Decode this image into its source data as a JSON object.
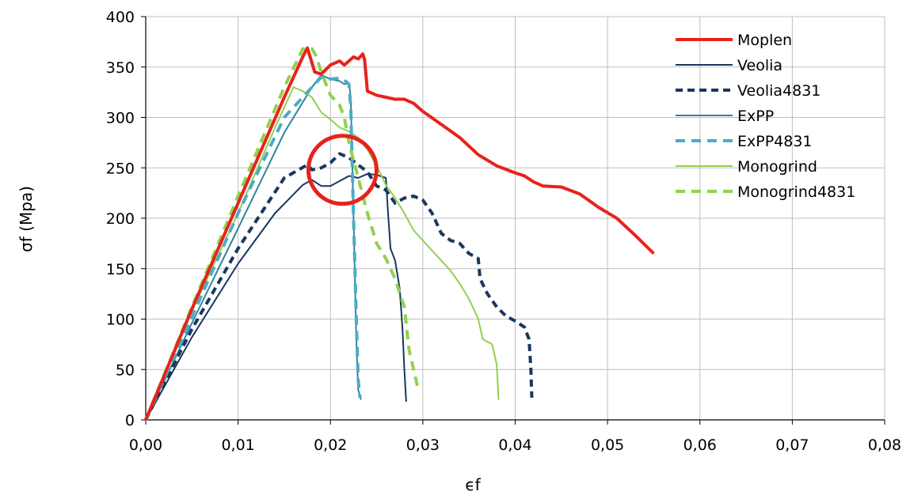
{
  "chart_data": {
    "type": "line",
    "xlabel": "ϵf",
    "ylabel": "σf (Mpa)",
    "xlim": [
      0,
      0.08
    ],
    "ylim": [
      0,
      400
    ],
    "x_ticks": [
      "0,00",
      "0,01",
      "0,02",
      "0,03",
      "0,04",
      "0,05",
      "0,06",
      "0,07",
      "0,08"
    ],
    "y_ticks": [
      "0",
      "50",
      "100",
      "150",
      "200",
      "250",
      "300",
      "350",
      "400"
    ],
    "grid": true,
    "legend_position": "top-right",
    "annotation": {
      "type": "circle",
      "center": [
        0.0213,
        248
      ],
      "color": "#e8221b"
    },
    "series": [
      {
        "name": "Moplen",
        "color": "#e8221b",
        "dash": "solid",
        "width": 4,
        "points": [
          [
            0,
            0
          ],
          [
            0.005,
            110
          ],
          [
            0.01,
            215
          ],
          [
            0.015,
            320
          ],
          [
            0.017,
            360
          ],
          [
            0.0175,
            369
          ],
          [
            0.0183,
            345
          ],
          [
            0.019,
            343
          ],
          [
            0.02,
            352
          ],
          [
            0.021,
            356
          ],
          [
            0.0215,
            352
          ],
          [
            0.0225,
            360
          ],
          [
            0.023,
            358
          ],
          [
            0.0235,
            363
          ],
          [
            0.0237,
            357
          ],
          [
            0.024,
            326
          ],
          [
            0.025,
            322
          ],
          [
            0.026,
            320
          ],
          [
            0.027,
            318
          ],
          [
            0.028,
            318
          ],
          [
            0.029,
            314
          ],
          [
            0.03,
            306
          ],
          [
            0.032,
            293
          ],
          [
            0.034,
            280
          ],
          [
            0.036,
            263
          ],
          [
            0.038,
            252
          ],
          [
            0.04,
            245
          ],
          [
            0.041,
            242
          ],
          [
            0.042,
            236
          ],
          [
            0.043,
            232
          ],
          [
            0.045,
            231
          ],
          [
            0.047,
            224
          ],
          [
            0.049,
            211
          ],
          [
            0.051,
            200
          ],
          [
            0.053,
            183
          ],
          [
            0.055,
            165
          ]
        ]
      },
      {
        "name": "Veolia",
        "color": "#17375e",
        "dash": "solid",
        "width": 2,
        "points": [
          [
            0,
            0
          ],
          [
            0.005,
            82
          ],
          [
            0.01,
            155
          ],
          [
            0.014,
            205
          ],
          [
            0.017,
            233
          ],
          [
            0.018,
            238
          ],
          [
            0.019,
            232
          ],
          [
            0.02,
            232
          ],
          [
            0.021,
            237
          ],
          [
            0.022,
            242
          ],
          [
            0.023,
            240
          ],
          [
            0.024,
            244
          ],
          [
            0.025,
            243
          ],
          [
            0.026,
            240
          ],
          [
            0.0262,
            210
          ],
          [
            0.0265,
            170
          ],
          [
            0.027,
            158
          ],
          [
            0.0275,
            130
          ],
          [
            0.0278,
            90
          ],
          [
            0.028,
            50
          ],
          [
            0.0282,
            18
          ]
        ]
      },
      {
        "name": "Veolia4831",
        "color": "#17375e",
        "dash": "9,6",
        "width": 4,
        "points": [
          [
            0,
            0
          ],
          [
            0.005,
            90
          ],
          [
            0.01,
            170
          ],
          [
            0.015,
            240
          ],
          [
            0.0175,
            253
          ],
          [
            0.018,
            248
          ],
          [
            0.019,
            250
          ],
          [
            0.02,
            255
          ],
          [
            0.021,
            264
          ],
          [
            0.022,
            260
          ],
          [
            0.023,
            253
          ],
          [
            0.024,
            246
          ],
          [
            0.025,
            232
          ],
          [
            0.026,
            228
          ],
          [
            0.027,
            215
          ],
          [
            0.028,
            220
          ],
          [
            0.029,
            222
          ],
          [
            0.03,
            218
          ],
          [
            0.031,
            205
          ],
          [
            0.032,
            185
          ],
          [
            0.033,
            178
          ],
          [
            0.034,
            175
          ],
          [
            0.035,
            165
          ],
          [
            0.036,
            160
          ],
          [
            0.0362,
            140
          ],
          [
            0.037,
            125
          ],
          [
            0.038,
            112
          ],
          [
            0.039,
            103
          ],
          [
            0.04,
            98
          ],
          [
            0.041,
            92
          ],
          [
            0.0415,
            80
          ],
          [
            0.0417,
            50
          ],
          [
            0.0418,
            22
          ]
        ]
      },
      {
        "name": "ExPP",
        "color": "#31859c",
        "dash": "solid",
        "width": 2,
        "points": [
          [
            0,
            0
          ],
          [
            0.005,
            96
          ],
          [
            0.01,
            190
          ],
          [
            0.015,
            285
          ],
          [
            0.018,
            330
          ],
          [
            0.019,
            342
          ],
          [
            0.02,
            338
          ],
          [
            0.021,
            336
          ],
          [
            0.0215,
            333
          ],
          [
            0.022,
            334
          ],
          [
            0.0222,
            320
          ],
          [
            0.0225,
            200
          ],
          [
            0.0228,
            80
          ],
          [
            0.023,
            30
          ],
          [
            0.0233,
            20
          ]
        ]
      },
      {
        "name": "ExPP4831",
        "color": "#4bacc6",
        "dash": "12,8",
        "width": 4,
        "points": [
          [
            0,
            0
          ],
          [
            0.005,
            102
          ],
          [
            0.01,
            205
          ],
          [
            0.015,
            300
          ],
          [
            0.018,
            330
          ],
          [
            0.019,
            340
          ],
          [
            0.02,
            338
          ],
          [
            0.021,
            339
          ],
          [
            0.0215,
            337
          ],
          [
            0.022,
            333
          ],
          [
            0.0222,
            310
          ],
          [
            0.0225,
            200
          ],
          [
            0.0228,
            100
          ],
          [
            0.023,
            40
          ],
          [
            0.0232,
            22
          ]
        ]
      },
      {
        "name": "Monogrind",
        "color": "#92d050",
        "dash": "solid",
        "width": 2,
        "points": [
          [
            0,
            0
          ],
          [
            0.005,
            108
          ],
          [
            0.01,
            205
          ],
          [
            0.014,
            290
          ],
          [
            0.016,
            330
          ],
          [
            0.017,
            326
          ],
          [
            0.018,
            320
          ],
          [
            0.019,
            305
          ],
          [
            0.02,
            298
          ],
          [
            0.021,
            290
          ],
          [
            0.022,
            286
          ],
          [
            0.023,
            280
          ],
          [
            0.024,
            268
          ],
          [
            0.025,
            252
          ],
          [
            0.026,
            233
          ],
          [
            0.027,
            220
          ],
          [
            0.028,
            205
          ],
          [
            0.029,
            188
          ],
          [
            0.03,
            178
          ],
          [
            0.031,
            168
          ],
          [
            0.032,
            158
          ],
          [
            0.033,
            148
          ],
          [
            0.034,
            135
          ],
          [
            0.035,
            120
          ],
          [
            0.036,
            100
          ],
          [
            0.0365,
            80
          ],
          [
            0.0375,
            75
          ],
          [
            0.038,
            55
          ],
          [
            0.0382,
            20
          ]
        ]
      },
      {
        "name": "Monogrind4831",
        "color": "#92d050",
        "dash": "12,8",
        "width": 4,
        "points": [
          [
            0,
            0
          ],
          [
            0.005,
            112
          ],
          [
            0.01,
            222
          ],
          [
            0.015,
            330
          ],
          [
            0.017,
            368
          ],
          [
            0.018,
            368
          ],
          [
            0.0185,
            360
          ],
          [
            0.019,
            345
          ],
          [
            0.02,
            322
          ],
          [
            0.021,
            312
          ],
          [
            0.0215,
            300
          ],
          [
            0.022,
            275
          ],
          [
            0.023,
            240
          ],
          [
            0.024,
            205
          ],
          [
            0.025,
            175
          ],
          [
            0.026,
            160
          ],
          [
            0.027,
            140
          ],
          [
            0.028,
            112
          ],
          [
            0.0285,
            70
          ],
          [
            0.029,
            50
          ],
          [
            0.0295,
            30
          ]
        ]
      }
    ]
  }
}
